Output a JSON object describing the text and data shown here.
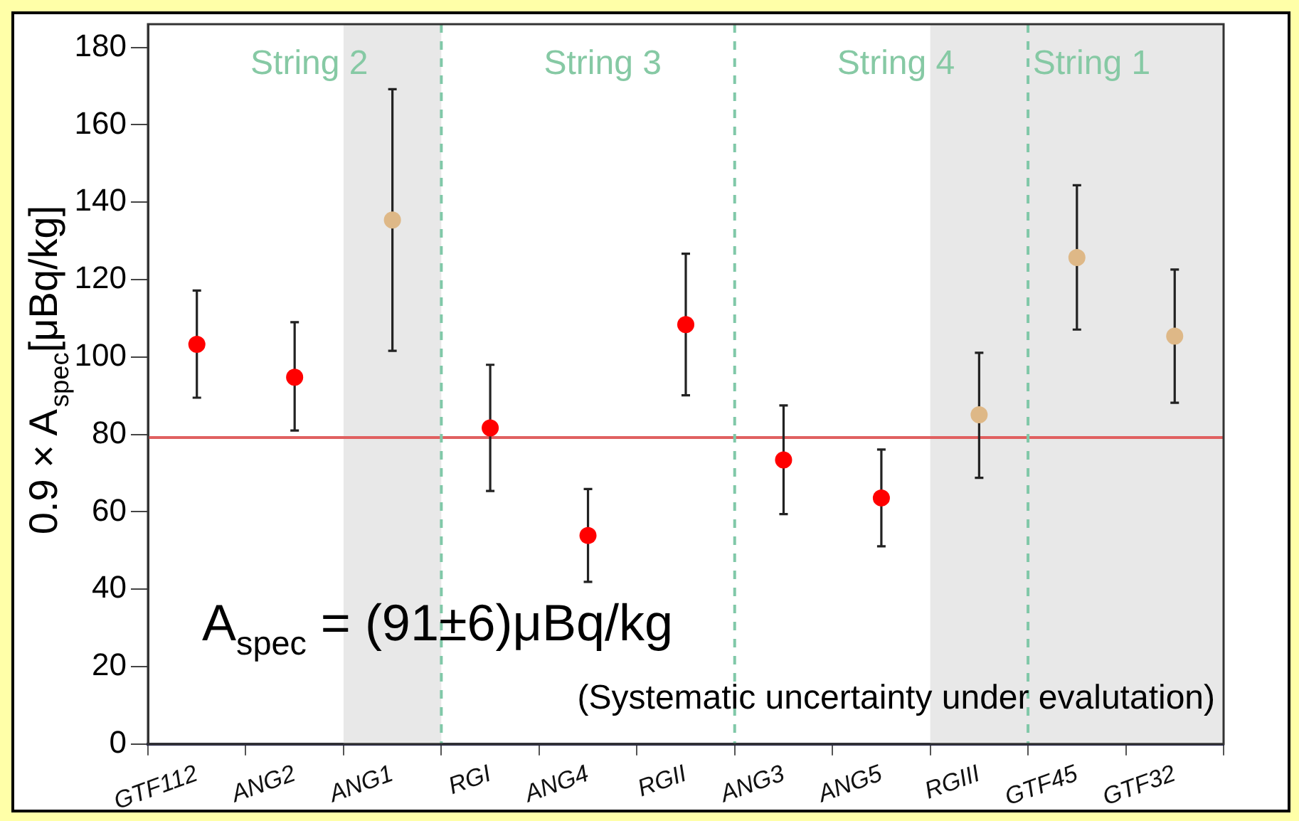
{
  "chart_data": {
    "type": "scatter",
    "ylabel": "0.9 × A$_{spec}$[μBq/kg]",
    "categories": [
      "GTF112",
      "ANG2",
      "ANG1",
      "RGI",
      "ANG4",
      "RGII",
      "ANG3",
      "ANG5",
      "RGIII",
      "GTF45",
      "GTF32"
    ],
    "series": [
      {
        "color": "#ff0000",
        "values": [
          103.3,
          94.8,
          null,
          81.7,
          53.9,
          108.4,
          73.4,
          63.6,
          null,
          null,
          null
        ],
        "errors": [
          [
            89.5,
            117.2
          ],
          [
            81.0,
            109.0
          ],
          null,
          [
            65.4,
            98.0
          ],
          12,
          [
            90.1,
            126.7
          ],
          [
            59.4,
            87.5
          ],
          [
            51.1,
            76.1
          ],
          null,
          null,
          null
        ]
      },
      {
        "color": "#deb887",
        "values": [
          null,
          null,
          135.4,
          null,
          null,
          null,
          null,
          null,
          85.1,
          125.7,
          105.4
        ],
        "errors": [
          null,
          null,
          [
            101.6,
            169.2
          ],
          null,
          null,
          null,
          null,
          null,
          [
            68.8,
            101.1
          ],
          [
            107.1,
            144.4
          ],
          [
            88.2,
            122.6
          ]
        ]
      }
    ],
    "marker": "circle",
    "ylim": [
      0,
      186
    ],
    "yticks": [
      0,
      20,
      40,
      60,
      80,
      100,
      120,
      140,
      160,
      180
    ],
    "ref_lines": [
      {
        "axis": "y",
        "value": 79.2,
        "color": "#e06060"
      }
    ],
    "bands": [
      {
        "axis": "x",
        "from": "ANG1",
        "to": "ANG1",
        "color": "#e8e8e8"
      },
      {
        "axis": "x",
        "from": "RGIII",
        "to": "GTF32",
        "color": "#e8e8e8"
      }
    ],
    "annotations": [
      "String 2",
      "String 3",
      "String 4",
      "String 1",
      "A$_{spec}$ = (91±6)μBq/kg",
      "(Systematic uncertainty under evalutation)"
    ]
  }
}
